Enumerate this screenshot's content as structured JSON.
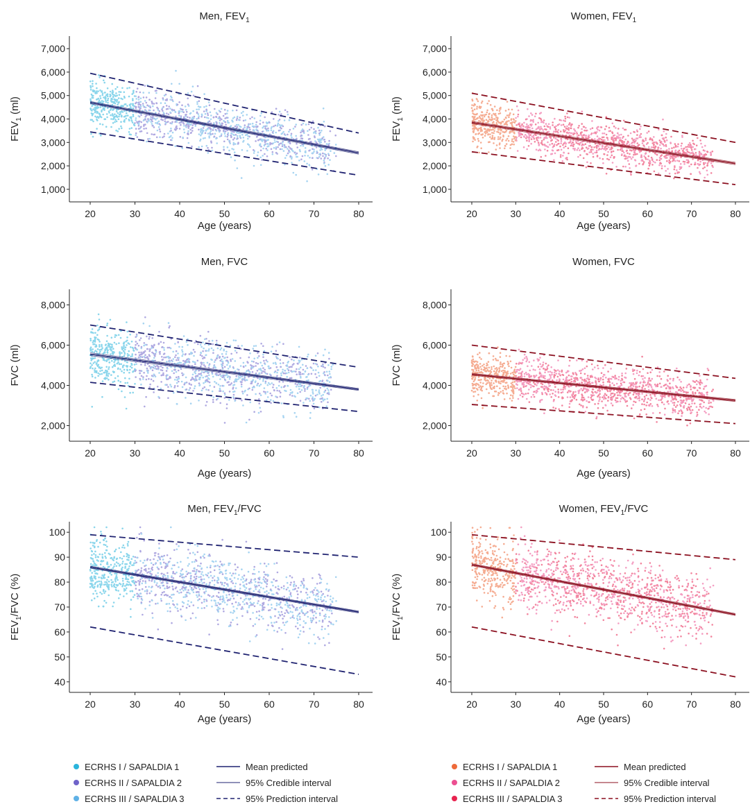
{
  "chart_data": [
    {
      "type": "scatter",
      "title": "Men, FEV",
      "title_sub": "1",
      "xlabel": "Age (years)",
      "ylabel": "FEV",
      "ylabel_sub": "1",
      "ylabel_tail": " (ml)",
      "xlim": [
        20,
        80
      ],
      "ylim": [
        700,
        7300
      ],
      "x_ticks": [
        "20",
        "30",
        "40",
        "50",
        "60",
        "70",
        "80"
      ],
      "y_ticks": [
        {
          "value": 1000,
          "label": "1,000"
        },
        {
          "value": 2000,
          "label": "2,000"
        },
        {
          "value": 3000,
          "label": "3,000"
        },
        {
          "value": 4000,
          "label": "4,000"
        },
        {
          "value": 5000,
          "label": "5,000"
        },
        {
          "value": 6000,
          "label": "6,000"
        },
        {
          "value": 7000,
          "label": "7,000"
        }
      ],
      "palette": "men",
      "mean_line": [
        [
          20,
          4700
        ],
        [
          80,
          2550
        ]
      ],
      "credible_interval": {
        "lower": [
          [
            20,
            4650
          ],
          [
            80,
            2500
          ]
        ],
        "upper": [
          [
            20,
            4750
          ],
          [
            80,
            2600
          ]
        ]
      },
      "prediction_interval": {
        "lower": [
          [
            20,
            3450
          ],
          [
            80,
            1600
          ]
        ],
        "upper": [
          [
            20,
            5950
          ],
          [
            80,
            3400
          ]
        ]
      },
      "scatter_sd": 520,
      "scatter_count": 1400
    },
    {
      "type": "scatter",
      "title": "Women, FEV",
      "title_sub": "1",
      "xlabel": "Age (years)",
      "ylabel": "FEV",
      "ylabel_sub": "1",
      "ylabel_tail": " (ml)",
      "xlim": [
        20,
        80
      ],
      "ylim": [
        700,
        7300
      ],
      "x_ticks": [
        "20",
        "30",
        "40",
        "50",
        "60",
        "70",
        "80"
      ],
      "y_ticks": [
        {
          "value": 1000,
          "label": "1,000"
        },
        {
          "value": 2000,
          "label": "2,000"
        },
        {
          "value": 3000,
          "label": "3,000"
        },
        {
          "value": 4000,
          "label": "4,000"
        },
        {
          "value": 5000,
          "label": "5,000"
        },
        {
          "value": 6000,
          "label": "6,000"
        },
        {
          "value": 7000,
          "label": "7,000"
        }
      ],
      "palette": "women",
      "mean_line": [
        [
          20,
          3850
        ],
        [
          80,
          2100
        ]
      ],
      "credible_interval": {
        "lower": [
          [
            20,
            3800
          ],
          [
            80,
            2050
          ]
        ],
        "upper": [
          [
            20,
            3900
          ],
          [
            80,
            2150
          ]
        ]
      },
      "prediction_interval": {
        "lower": [
          [
            20,
            2600
          ],
          [
            80,
            1200
          ]
        ],
        "upper": [
          [
            20,
            5100
          ],
          [
            80,
            3000
          ]
        ]
      },
      "scatter_sd": 430,
      "scatter_count": 1400
    },
    {
      "type": "scatter",
      "title": "Men, FVC",
      "title_sub": "",
      "xlabel": "Age (years)",
      "ylabel": "FVC",
      "ylabel_sub": "",
      "ylabel_tail": " (ml)",
      "xlim": [
        20,
        80
      ],
      "ylim": [
        1500,
        8500
      ],
      "x_ticks": [
        "20",
        "30",
        "40",
        "50",
        "60",
        "70",
        "80"
      ],
      "y_ticks": [
        {
          "value": 2000,
          "label": "2,000"
        },
        {
          "value": 4000,
          "label": "4,000"
        },
        {
          "value": 6000,
          "label": "6,000"
        },
        {
          "value": 8000,
          "label": "8,000"
        }
      ],
      "palette": "men",
      "mean_line": [
        [
          20,
          5550
        ],
        [
          80,
          3800
        ]
      ],
      "credible_interval": {
        "lower": [
          [
            20,
            5480
          ],
          [
            80,
            3750
          ]
        ],
        "upper": [
          [
            20,
            5620
          ],
          [
            80,
            3850
          ]
        ]
      },
      "prediction_interval": {
        "lower": [
          [
            20,
            4150
          ],
          [
            80,
            2700
          ]
        ],
        "upper": [
          [
            20,
            7000
          ],
          [
            80,
            4900
          ]
        ]
      },
      "scatter_sd": 720,
      "scatter_count": 1400
    },
    {
      "type": "scatter",
      "title": "Women, FVC",
      "title_sub": "",
      "xlabel": "Age (years)",
      "ylabel": "FVC",
      "ylabel_sub": "",
      "ylabel_tail": " (ml)",
      "xlim": [
        20,
        80
      ],
      "ylim": [
        1500,
        8500
      ],
      "x_ticks": [
        "20",
        "30",
        "40",
        "50",
        "60",
        "70",
        "80"
      ],
      "y_ticks": [
        {
          "value": 2000,
          "label": "2,000"
        },
        {
          "value": 4000,
          "label": "4,000"
        },
        {
          "value": 6000,
          "label": "6,000"
        },
        {
          "value": 8000,
          "label": "8,000"
        }
      ],
      "palette": "women",
      "mean_line": [
        [
          20,
          4550
        ],
        [
          80,
          3250
        ]
      ],
      "credible_interval": {
        "lower": [
          [
            20,
            4500
          ],
          [
            80,
            3200
          ]
        ],
        "upper": [
          [
            20,
            4600
          ],
          [
            80,
            3300
          ]
        ]
      },
      "prediction_interval": {
        "lower": [
          [
            20,
            3050
          ],
          [
            80,
            2100
          ]
        ],
        "upper": [
          [
            20,
            6000
          ],
          [
            80,
            4350
          ]
        ]
      },
      "scatter_sd": 520,
      "scatter_count": 1400
    },
    {
      "type": "scatter",
      "title": "Men, FEV",
      "title_sub": "1",
      "title_tail": "/FVC",
      "xlabel": "Age (years)",
      "ylabel": "FEV",
      "ylabel_sub": "1",
      "ylabel_tail": "/FVC (%)",
      "xlim": [
        20,
        80
      ],
      "ylim": [
        38,
        102
      ],
      "x_ticks": [
        "20",
        "30",
        "40",
        "50",
        "60",
        "70",
        "80"
      ],
      "y_ticks": [
        {
          "value": 40,
          "label": "40"
        },
        {
          "value": 50,
          "label": "50"
        },
        {
          "value": 60,
          "label": "60"
        },
        {
          "value": 70,
          "label": "70"
        },
        {
          "value": 80,
          "label": "80"
        },
        {
          "value": 90,
          "label": "90"
        },
        {
          "value": 100,
          "label": "100"
        }
      ],
      "palette": "men",
      "mean_line": [
        [
          20,
          86
        ],
        [
          80,
          68
        ]
      ],
      "credible_interval": {
        "lower": [
          [
            20,
            85.6
          ],
          [
            80,
            67.6
          ]
        ],
        "upper": [
          [
            20,
            86.4
          ],
          [
            80,
            68.4
          ]
        ]
      },
      "prediction_interval": {
        "lower": [
          [
            20,
            62
          ],
          [
            80,
            43
          ]
        ],
        "upper": [
          [
            20,
            99
          ],
          [
            80,
            90
          ]
        ]
      },
      "scatter_sd": 6.5,
      "scatter_count": 1400
    },
    {
      "type": "scatter",
      "title": "Women, FEV",
      "title_sub": "1",
      "title_tail": "/FVC",
      "xlabel": "Age (years)",
      "ylabel": "FEV",
      "ylabel_sub": "1",
      "ylabel_tail": "/FVC (%)",
      "xlim": [
        20,
        80
      ],
      "ylim": [
        38,
        102
      ],
      "x_ticks": [
        "20",
        "30",
        "40",
        "50",
        "60",
        "70",
        "80"
      ],
      "y_ticks": [
        {
          "value": 40,
          "label": "40"
        },
        {
          "value": 50,
          "label": "50"
        },
        {
          "value": 60,
          "label": "60"
        },
        {
          "value": 70,
          "label": "70"
        },
        {
          "value": 80,
          "label": "80"
        },
        {
          "value": 90,
          "label": "90"
        },
        {
          "value": 100,
          "label": "100"
        }
      ],
      "palette": "women",
      "mean_line": [
        [
          20,
          87
        ],
        [
          80,
          67
        ]
      ],
      "credible_interval": {
        "lower": [
          [
            20,
            86.6
          ],
          [
            80,
            66.6
          ]
        ],
        "upper": [
          [
            20,
            87.4
          ],
          [
            80,
            67.4
          ]
        ]
      },
      "prediction_interval": {
        "lower": [
          [
            20,
            62
          ],
          [
            80,
            42
          ]
        ],
        "upper": [
          [
            20,
            99
          ],
          [
            80,
            89
          ]
        ]
      },
      "scatter_sd": 6.5,
      "scatter_count": 1400
    }
  ],
  "palettes": {
    "men": {
      "cohorts": [
        "#2ab4dc",
        "#6f63c9",
        "#5fb1e6"
      ],
      "line": "#1f2270"
    },
    "women": {
      "cohorts": [
        "#ee6a3a",
        "#ec4f91",
        "#e8234f"
      ],
      "line": "#8b0f1f"
    }
  },
  "legends": [
    {
      "palette": "men",
      "series": [
        "ECRHS I / SAPALDIA 1",
        "ECRHS II / SAPALDIA 2",
        "ECRHS III / SAPALDIA 3"
      ],
      "lines": [
        "Mean predicted",
        "95% Credible interval",
        "95% Prediction interval"
      ]
    },
    {
      "palette": "women",
      "series": [
        "ECRHS I / SAPALDIA 1",
        "ECRHS II / SAPALDIA 2",
        "ECRHS III / SAPALDIA 3"
      ],
      "lines": [
        "Mean predicted",
        "95% Credible interval",
        "95% Prediction interval"
      ]
    }
  ]
}
